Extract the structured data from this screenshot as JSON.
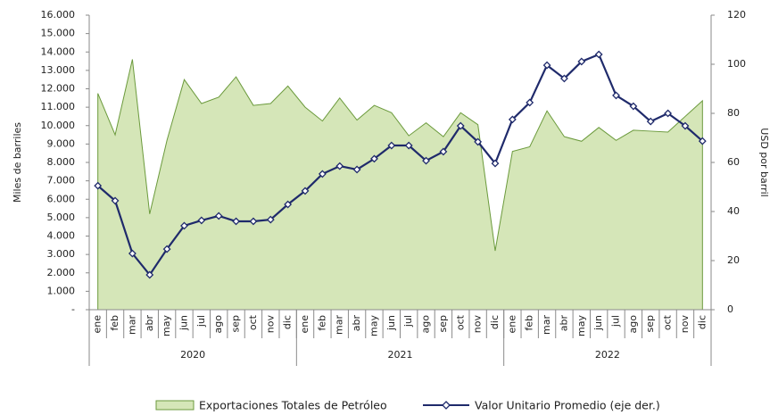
{
  "chart_data": {
    "type": "area",
    "y_label": "Miles de barriles",
    "y2_label": "USD por barril",
    "categories": [
      "ene",
      "feb",
      "mar",
      "abr",
      "may",
      "jun",
      "jul",
      "ago",
      "sep",
      "oct",
      "nov",
      "dic",
      "ene",
      "feb",
      "mar",
      "abr",
      "may",
      "jun",
      "jul",
      "ago",
      "sep",
      "oct",
      "nov",
      "dic",
      "ene",
      "feb",
      "mar",
      "abr",
      "may",
      "jun",
      "jul",
      "ago",
      "sep",
      "oct",
      "nov",
      "dic"
    ],
    "year_groups": [
      "2020",
      "2021",
      "2022"
    ],
    "series": [
      {
        "name": "Exportaciones Totales de Petróleo",
        "type": "area",
        "color": "#d5e6b8",
        "stroke": "#6b9a3c",
        "values": [
          11750,
          9500,
          13600,
          5200,
          9200,
          12500,
          11200,
          11550,
          12650,
          11100,
          11200,
          12150,
          11000,
          10250,
          11500,
          10300,
          11100,
          10700,
          9450,
          10150,
          9400,
          10700,
          10050,
          3200,
          8600,
          8850,
          10800,
          9400,
          9150,
          9900,
          9200,
          9750,
          9700,
          9650,
          10500,
          11350
        ]
      },
      {
        "name": "Valor Unitario Promedio (eje der.)",
        "type": "line",
        "axis": "y2",
        "color": "#1f2a6b",
        "values": [
          50.5,
          44.4,
          22.9,
          14.2,
          24.7,
          34.2,
          36.4,
          38.2,
          36,
          36,
          36.7,
          42.9,
          48.4,
          55.3,
          58.5,
          57.1,
          61.5,
          66.9,
          66.9,
          60.7,
          64.4,
          74.9,
          68.4,
          59.6,
          77.5,
          84.4,
          99.6,
          94.2,
          101.1,
          104,
          87.3,
          82.9,
          76.7,
          80,
          74.9,
          68.7
        ]
      }
    ],
    "ylim": [
      0,
      16000
    ],
    "yticks": [
      {
        "value": 0,
        "label": "-"
      },
      {
        "value": 1000,
        "label": "1.000"
      },
      {
        "value": 2000,
        "label": "2.000"
      },
      {
        "value": 3000,
        "label": "3.000"
      },
      {
        "value": 4000,
        "label": "4.000"
      },
      {
        "value": 5000,
        "label": "5.000"
      },
      {
        "value": 6000,
        "label": "6.000"
      },
      {
        "value": 7000,
        "label": "7.000"
      },
      {
        "value": 8000,
        "label": "8.000"
      },
      {
        "value": 9000,
        "label": "9.000"
      },
      {
        "value": 10000,
        "label": "10.000"
      },
      {
        "value": 11000,
        "label": "11.000"
      },
      {
        "value": 12000,
        "label": "12.000"
      },
      {
        "value": 13000,
        "label": "13.000"
      },
      {
        "value": 14000,
        "label": "14.000"
      },
      {
        "value": 15000,
        "label": "15.000"
      },
      {
        "value": 16000,
        "label": "16.000"
      }
    ],
    "y2lim": [
      0,
      120
    ],
    "y2ticks": [
      0,
      20,
      40,
      60,
      80,
      100,
      120
    ],
    "grid": false
  }
}
